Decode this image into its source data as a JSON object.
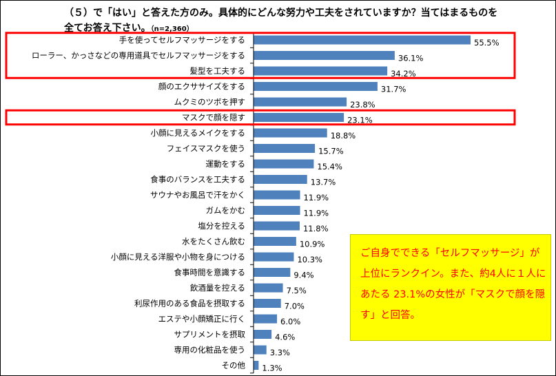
{
  "title": {
    "text": "（５）で「はい」と答えた方のみ。具体的にどんな努力や工夫をされていますか？当てはまるものを全てお答え下さい。",
    "sample": "（n=2,360）"
  },
  "note": {
    "text": "ご自身でできる「セルフマッサージ」が上位にランクイン。また、約4人に１人にあたる 23.1%の女性が「マスクで顔を隠す」と回答。"
  },
  "colors": {
    "bar": "#4f81bd",
    "highlight_box": "#ff0000",
    "note_bg": "#ffff00",
    "note_text": "#ff0000"
  },
  "chart_data": {
    "type": "bar",
    "orientation": "horizontal",
    "categories": [
      "手を使ってセルフマッサージをする",
      "ローラー、かっさなどの専用道具でセルフマッサージをする",
      "髪型を工夫する",
      "顔のエクササイズをする",
      "ムクミのツボを押す",
      "マスクで顔を隠す",
      "小顔に見えるメイクをする",
      "フェイスマスクを使う",
      "運動をする",
      "食事のバランスを工夫する",
      "サウナやお風呂で汗をかく",
      "ガムをかむ",
      "塩分を控える",
      "水をたくさん飲む",
      "小顔に見える洋服や小物を身につける",
      "食事時間を意識する",
      "飲酒量を控える",
      "利尿作用のある食品を摂取する",
      "エステや小顔矯正に行く",
      "サプリメントを摂取",
      "専用の化粧品を使う",
      "その他"
    ],
    "values": [
      55.5,
      36.1,
      34.2,
      31.7,
      23.8,
      23.1,
      18.8,
      15.7,
      15.4,
      13.7,
      11.9,
      11.9,
      11.8,
      10.9,
      10.3,
      9.4,
      7.5,
      7.0,
      6.0,
      4.6,
      3.3,
      1.3
    ],
    "value_labels": [
      "55.5%",
      "36.1%",
      "34.2%",
      "31.7%",
      "23.8%",
      "23.1%",
      "18.8%",
      "15.7%",
      "15.4%",
      "13.7%",
      "11.9%",
      "11.9%",
      "11.8%",
      "10.9%",
      "10.3%",
      "9.4%",
      "7.5%",
      "7.0%",
      "6.0%",
      "4.6%",
      "3.3%",
      "1.3%"
    ],
    "unit": "%",
    "highlighted_groups": [
      [
        0,
        1,
        2
      ],
      [
        5
      ]
    ]
  }
}
